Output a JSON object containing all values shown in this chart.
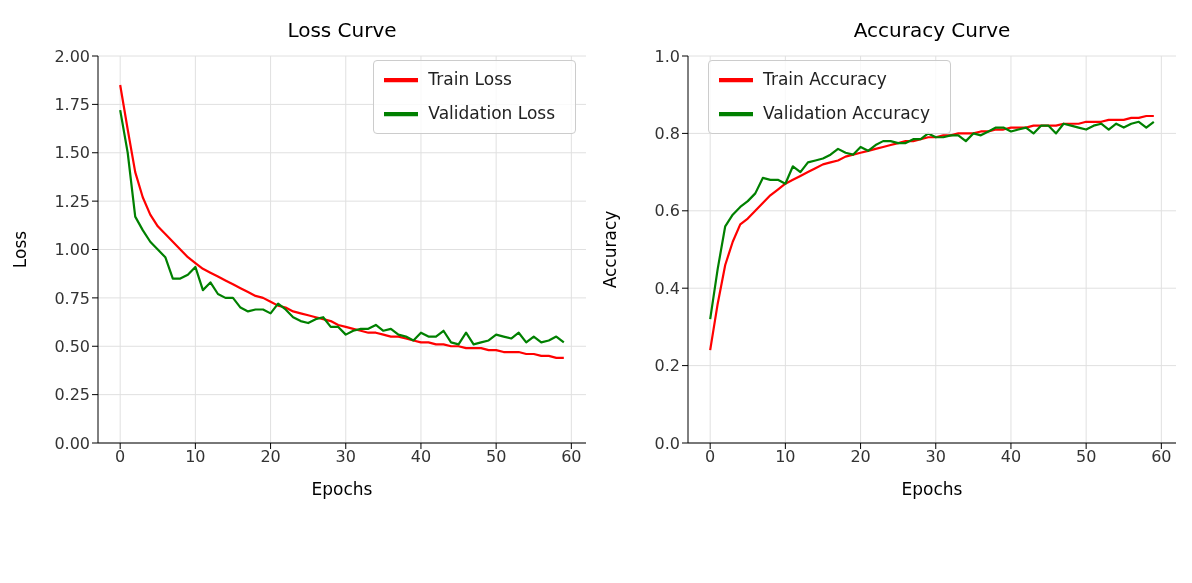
{
  "chart_data": [
    {
      "type": "line",
      "title": "Loss Curve",
      "xlabel": "Epochs",
      "ylabel": "Loss",
      "x": [
        0,
        1,
        2,
        3,
        4,
        5,
        6,
        7,
        8,
        9,
        10,
        11,
        12,
        13,
        14,
        15,
        16,
        17,
        18,
        19,
        20,
        21,
        22,
        23,
        24,
        25,
        26,
        27,
        28,
        29,
        30,
        31,
        32,
        33,
        34,
        35,
        36,
        37,
        38,
        39,
        40,
        41,
        42,
        43,
        44,
        45,
        46,
        47,
        48,
        49,
        50,
        51,
        52,
        53,
        54,
        55,
        56,
        57,
        58,
        59
      ],
      "series": [
        {
          "name": "Train Loss",
          "color": "#ff0000",
          "values": [
            1.85,
            1.62,
            1.4,
            1.27,
            1.18,
            1.12,
            1.08,
            1.04,
            1.0,
            0.96,
            0.93,
            0.9,
            0.88,
            0.86,
            0.84,
            0.82,
            0.8,
            0.78,
            0.76,
            0.75,
            0.73,
            0.71,
            0.7,
            0.68,
            0.67,
            0.66,
            0.65,
            0.64,
            0.63,
            0.61,
            0.6,
            0.59,
            0.58,
            0.57,
            0.57,
            0.56,
            0.55,
            0.55,
            0.54,
            0.53,
            0.52,
            0.52,
            0.51,
            0.51,
            0.5,
            0.5,
            0.49,
            0.49,
            0.49,
            0.48,
            0.48,
            0.47,
            0.47,
            0.47,
            0.46,
            0.46,
            0.45,
            0.45,
            0.44,
            0.44
          ]
        },
        {
          "name": "Validation Loss",
          "color": "#008000",
          "values": [
            1.72,
            1.5,
            1.17,
            1.1,
            1.04,
            1.0,
            0.96,
            0.85,
            0.85,
            0.87,
            0.91,
            0.79,
            0.83,
            0.77,
            0.75,
            0.75,
            0.7,
            0.68,
            0.69,
            0.69,
            0.67,
            0.72,
            0.69,
            0.65,
            0.63,
            0.62,
            0.64,
            0.65,
            0.6,
            0.6,
            0.56,
            0.58,
            0.59,
            0.59,
            0.61,
            0.58,
            0.59,
            0.56,
            0.55,
            0.53,
            0.57,
            0.55,
            0.55,
            0.58,
            0.52,
            0.51,
            0.57,
            0.51,
            0.52,
            0.53,
            0.56,
            0.55,
            0.54,
            0.57,
            0.52,
            0.55,
            0.52,
            0.53,
            0.55,
            0.52
          ]
        }
      ],
      "xlim": [
        -2.95,
        61.95
      ],
      "xticks": [
        0,
        10,
        20,
        30,
        40,
        50,
        60
      ],
      "ylim": [
        0,
        2
      ],
      "yticks": [
        {
          "value": 0,
          "label": "0.00"
        },
        {
          "value": 0.25,
          "label": "0.25"
        },
        {
          "value": 0.5,
          "label": "0.50"
        },
        {
          "value": 0.75,
          "label": "0.75"
        },
        {
          "value": 1,
          "label": "1.00"
        },
        {
          "value": 1.25,
          "label": "1.25"
        },
        {
          "value": 1.5,
          "label": "1.50"
        },
        {
          "value": 1.75,
          "label": "1.75"
        },
        {
          "value": 2,
          "label": "2.00"
        }
      ],
      "grid": true,
      "legend": "top right"
    },
    {
      "type": "line",
      "title": "Accuracy Curve",
      "xlabel": "Epochs",
      "ylabel": "Accuracy",
      "x": [
        0,
        1,
        2,
        3,
        4,
        5,
        6,
        7,
        8,
        9,
        10,
        11,
        12,
        13,
        14,
        15,
        16,
        17,
        18,
        19,
        20,
        21,
        22,
        23,
        24,
        25,
        26,
        27,
        28,
        29,
        30,
        31,
        32,
        33,
        34,
        35,
        36,
        37,
        38,
        39,
        40,
        41,
        42,
        43,
        44,
        45,
        46,
        47,
        48,
        49,
        50,
        51,
        52,
        53,
        54,
        55,
        56,
        57,
        58,
        59
      ],
      "series": [
        {
          "name": "Train Accuracy",
          "color": "#ff0000",
          "values": [
            0.24,
            0.36,
            0.46,
            0.52,
            0.565,
            0.58,
            0.6,
            0.62,
            0.64,
            0.655,
            0.67,
            0.68,
            0.69,
            0.7,
            0.71,
            0.72,
            0.725,
            0.73,
            0.74,
            0.745,
            0.75,
            0.755,
            0.76,
            0.765,
            0.77,
            0.775,
            0.78,
            0.78,
            0.785,
            0.79,
            0.79,
            0.795,
            0.795,
            0.8,
            0.8,
            0.8,
            0.805,
            0.805,
            0.81,
            0.81,
            0.815,
            0.815,
            0.815,
            0.82,
            0.82,
            0.82,
            0.82,
            0.825,
            0.825,
            0.825,
            0.83,
            0.83,
            0.83,
            0.835,
            0.835,
            0.835,
            0.84,
            0.84,
            0.845,
            0.845
          ]
        },
        {
          "name": "Validation Accuracy",
          "color": "#008000",
          "values": [
            0.32,
            0.45,
            0.56,
            0.59,
            0.61,
            0.625,
            0.645,
            0.685,
            0.68,
            0.68,
            0.67,
            0.715,
            0.7,
            0.725,
            0.73,
            0.735,
            0.745,
            0.76,
            0.75,
            0.745,
            0.765,
            0.755,
            0.77,
            0.78,
            0.78,
            0.775,
            0.775,
            0.785,
            0.785,
            0.8,
            0.79,
            0.79,
            0.795,
            0.795,
            0.78,
            0.8,
            0.795,
            0.805,
            0.815,
            0.815,
            0.805,
            0.81,
            0.815,
            0.8,
            0.82,
            0.82,
            0.8,
            0.825,
            0.82,
            0.815,
            0.81,
            0.82,
            0.825,
            0.81,
            0.825,
            0.815,
            0.825,
            0.83,
            0.815,
            0.83
          ]
        }
      ],
      "xlim": [
        -2.95,
        61.95
      ],
      "xticks": [
        0,
        10,
        20,
        30,
        40,
        50,
        60
      ],
      "ylim": [
        0,
        1
      ],
      "yticks": [
        {
          "value": 0,
          "label": "0.0"
        },
        {
          "value": 0.2,
          "label": "0.2"
        },
        {
          "value": 0.4,
          "label": "0.4"
        },
        {
          "value": 0.6,
          "label": "0.6"
        },
        {
          "value": 0.8,
          "label": "0.8"
        },
        {
          "value": 1,
          "label": "1.0"
        }
      ],
      "grid": true,
      "legend": "top left"
    }
  ]
}
